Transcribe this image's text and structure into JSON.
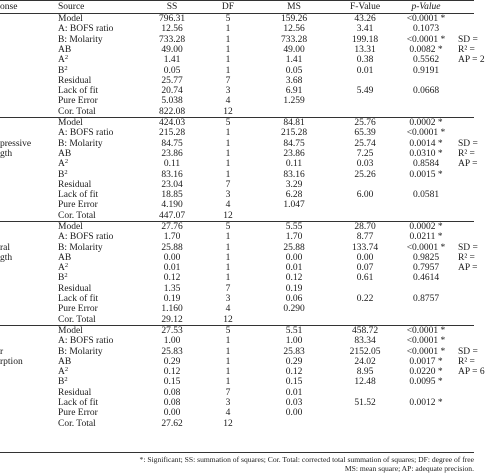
{
  "header": {
    "response": "onse",
    "source": "Source",
    "ss": "SS",
    "df": "DF",
    "ms": "MS",
    "fvalue": "F-Value",
    "pvalue": "p-Value"
  },
  "sections": [
    {
      "response_lines": [
        "",
        "",
        "",
        "",
        "",
        "",
        "",
        "",
        "",
        "",
        ""
      ],
      "fit_lines": [
        "",
        "",
        "SD = ",
        "R² = ",
        "AP = 2",
        "",
        "",
        "",
        "",
        "",
        ""
      ],
      "rows": [
        {
          "source": "Model",
          "ss": "796.31",
          "df": "5",
          "ms": "159.26",
          "f": "43.26",
          "p": "<0.0001 *"
        },
        {
          "source": "A: BOFS ratio",
          "ss": "12.56",
          "df": "1",
          "ms": "12.56",
          "f": "3.41",
          "p": "0.1073"
        },
        {
          "source": "B: Molarity",
          "ss": "733.28",
          "df": "1",
          "ms": "733.28",
          "f": "199.18",
          "p": "<0.0001 *"
        },
        {
          "source": "AB",
          "ss": "49.00",
          "df": "1",
          "ms": "49.00",
          "f": "13.31",
          "p": "0.0082 *"
        },
        {
          "source": "A2",
          "ss": "1.41",
          "df": "1",
          "ms": "1.41",
          "f": "0.38",
          "p": "0.5562"
        },
        {
          "source": "B2",
          "ss": "0.05",
          "df": "1",
          "ms": "0.05",
          "f": "0.01",
          "p": "0.9191"
        },
        {
          "source": "Residual",
          "ss": "25.77",
          "df": "7",
          "ms": "3.68",
          "f": "",
          "p": ""
        },
        {
          "source": "Lack of fit",
          "ss": "20.74",
          "df": "3",
          "ms": "6.91",
          "f": "5.49",
          "p": "0.0668"
        },
        {
          "source": "Pure Error",
          "ss": "5.038",
          "df": "4",
          "ms": "1.259",
          "f": "",
          "p": ""
        },
        {
          "source": "Cor. Total",
          "ss": "822.08",
          "df": "12",
          "ms": "",
          "f": "",
          "p": ""
        }
      ]
    },
    {
      "response_lines": [
        "",
        "",
        "pressive",
        "gth",
        "",
        "",
        "",
        "",
        "",
        "",
        ""
      ],
      "fit_lines": [
        "",
        "",
        "SD = ",
        "R² = ",
        "AP = ",
        "",
        "",
        "",
        "",
        "",
        ""
      ],
      "rows": [
        {
          "source": "Model",
          "ss": "424.03",
          "df": "5",
          "ms": "84.81",
          "f": "25.76",
          "p": "0.0002 *"
        },
        {
          "source": "A: BOFS ratio",
          "ss": "215.28",
          "df": "1",
          "ms": "215.28",
          "f": "65.39",
          "p": "<0.0001 *"
        },
        {
          "source": "B: Molarity",
          "ss": "84.75",
          "df": "1",
          "ms": "84.75",
          "f": "25.74",
          "p": "0.0014 *"
        },
        {
          "source": "AB",
          "ss": "23.86",
          "df": "1",
          "ms": "23.86",
          "f": "7.25",
          "p": "0.0310 *"
        },
        {
          "source": "A2",
          "ss": "0.11",
          "df": "1",
          "ms": "0.11",
          "f": "0.03",
          "p": "0.8584"
        },
        {
          "source": "B2",
          "ss": "83.16",
          "df": "1",
          "ms": "83.16",
          "f": "25.26",
          "p": "0.0015 *"
        },
        {
          "source": "Residual",
          "ss": "23.04",
          "df": "7",
          "ms": "3.29",
          "f": "",
          "p": ""
        },
        {
          "source": "Lack of fit",
          "ss": "18.85",
          "df": "3",
          "ms": "6.28",
          "f": "6.00",
          "p": "0.0581"
        },
        {
          "source": "Pure Error",
          "ss": "4.190",
          "df": "4",
          "ms": "1.047",
          "f": "",
          "p": ""
        },
        {
          "source": "Cor. Total",
          "ss": "447.07",
          "df": "12",
          "ms": "",
          "f": "",
          "p": ""
        }
      ]
    },
    {
      "response_lines": [
        "",
        "",
        "ral",
        "gth",
        "",
        "",
        "",
        "",
        "",
        "",
        ""
      ],
      "fit_lines": [
        "",
        "",
        "SD = ",
        "R² = ",
        "AP = ",
        "",
        "",
        "",
        "",
        "",
        ""
      ],
      "rows": [
        {
          "source": "Model",
          "ss": "27.76",
          "df": "5",
          "ms": "5.55",
          "f": "28.70",
          "p": "0.0002 *"
        },
        {
          "source": "A: BOFS ratio",
          "ss": "1.70",
          "df": "1",
          "ms": "1.70",
          "f": "8.77",
          "p": "0.0211 *"
        },
        {
          "source": "B: Molarity",
          "ss": "25.88",
          "df": "1",
          "ms": "25.88",
          "f": "133.74",
          "p": "<0.0001 *"
        },
        {
          "source": "AB",
          "ss": "0.00",
          "df": "1",
          "ms": "0.00",
          "f": "0.00",
          "p": "0.9825"
        },
        {
          "source": "A2",
          "ss": "0.01",
          "df": "1",
          "ms": "0.01",
          "f": "0.07",
          "p": "0.7957"
        },
        {
          "source": "B2",
          "ss": "0.12",
          "df": "1",
          "ms": "0.12",
          "f": "0.61",
          "p": "0.4614"
        },
        {
          "source": "Residual",
          "ss": "1.35",
          "df": "7",
          "ms": "0.19",
          "f": "",
          "p": ""
        },
        {
          "source": "Lack of fit",
          "ss": "0.19",
          "df": "3",
          "ms": "0.06",
          "f": "0.22",
          "p": "0.8757"
        },
        {
          "source": "Pure Error",
          "ss": "1.160",
          "df": "4",
          "ms": "0.290",
          "f": "",
          "p": ""
        },
        {
          "source": "Cor. Total",
          "ss": "29.12",
          "df": "12",
          "ms": "",
          "f": "",
          "p": ""
        }
      ]
    },
    {
      "response_lines": [
        "",
        "",
        "r",
        "rption",
        "",
        "",
        "",
        "",
        "",
        "",
        ""
      ],
      "fit_lines": [
        "",
        "",
        "SD = ",
        "R² = ",
        "AP = 6",
        "",
        "",
        "",
        "",
        "",
        ""
      ],
      "rows": [
        {
          "source": "Model",
          "ss": "27.53",
          "df": "5",
          "ms": "5.51",
          "f": "458.72",
          "p": "<0.0001 *"
        },
        {
          "source": "A: BOFS ratio",
          "ss": "1.00",
          "df": "1",
          "ms": "1.00",
          "f": "83.34",
          "p": "<0.0001 *"
        },
        {
          "source": "B: Molarity",
          "ss": "25.83",
          "df": "1",
          "ms": "25.83",
          "f": "2152.05",
          "p": "<0.0001 *"
        },
        {
          "source": "AB",
          "ss": "0.29",
          "df": "1",
          "ms": "0.29",
          "f": "24.02",
          "p": "0.0017 *"
        },
        {
          "source": "A2",
          "ss": "0.12",
          "df": "1",
          "ms": "0.12",
          "f": "8.95",
          "p": "0.0220 *"
        },
        {
          "source": "B2",
          "ss": "0.15",
          "df": "1",
          "ms": "0.15",
          "f": "12.48",
          "p": "0.0095 *"
        },
        {
          "source": "Residual",
          "ss": "0.08",
          "df": "7",
          "ms": "0.01",
          "f": "",
          "p": ""
        },
        {
          "source": "Lack of fit",
          "ss": "0.08",
          "df": "3",
          "ms": "0.03",
          "f": "51.52",
          "p": "0.0012 *"
        },
        {
          "source": "Pure Error",
          "ss": "0.00",
          "df": "4",
          "ms": "0.00",
          "f": "",
          "p": ""
        },
        {
          "source": "Cor. Total",
          "ss": "27.62",
          "df": "12",
          "ms": "",
          "f": "",
          "p": ""
        }
      ]
    }
  ],
  "footnote": {
    "line1": "*: Significant; SS: summation of squares; Cor. Total: corrected total summation of squares; DF: degree of free",
    "line2": "MS: mean square; AP: adequate precision."
  }
}
